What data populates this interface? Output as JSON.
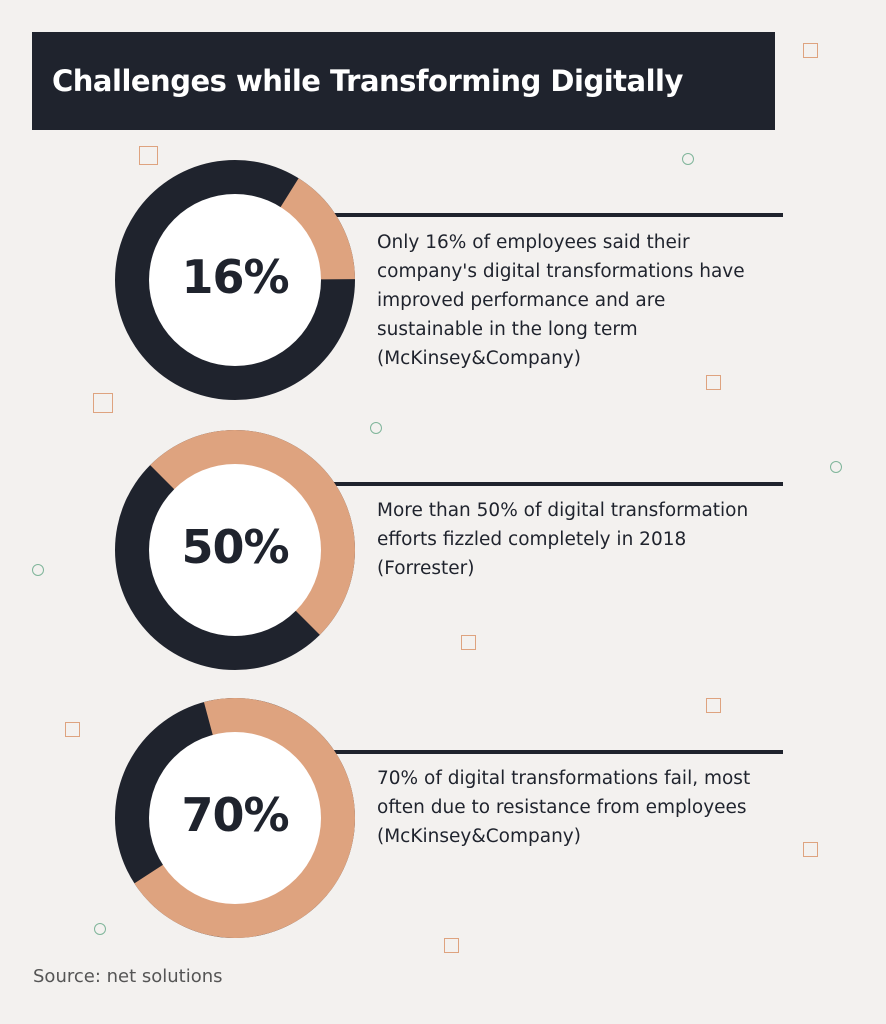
{
  "title": "Challenges while Transforming Digitally",
  "colors": {
    "dark": "#1f232d",
    "accent": "#dea37f",
    "inner": "#ffffff",
    "background": "#f3f1ef"
  },
  "chart_data": {
    "type": "pie",
    "items": [
      {
        "label": "16%",
        "value": 16,
        "text": "Only 16% of employees said their company's digital transformations have improved performance and are sustainable in the long term",
        "source": "(McKinsey&Company)"
      },
      {
        "label": "50%",
        "value": 50,
        "text": "More than 50% of digital transformation efforts fizzled completely in 2018",
        "source": "(Forrester)"
      },
      {
        "label": "70%",
        "value": 70,
        "text": "70% of digital transformations fail, most often due to resistance from employees",
        "source": "(McKinsey&Company)"
      }
    ]
  },
  "footer": {
    "source": "Source: net solutions"
  }
}
